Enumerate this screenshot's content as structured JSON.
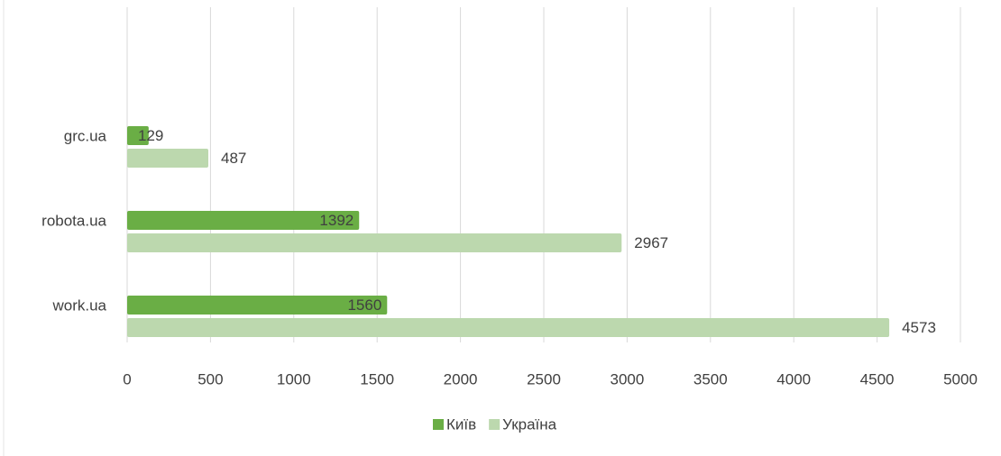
{
  "chart_data": {
    "type": "bar",
    "orientation": "horizontal",
    "categories": [
      "grc.ua",
      "robota.ua",
      "work.ua"
    ],
    "series": [
      {
        "name": "Київ",
        "color": "#6aae45",
        "values": [
          129,
          1392,
          1560
        ]
      },
      {
        "name": "Україна",
        "color": "#bcd8ae",
        "values": [
          487,
          2967,
          4573
        ]
      }
    ],
    "xlim": [
      0,
      5000
    ],
    "xticks": [
      0,
      500,
      1000,
      1500,
      2000,
      2500,
      3000,
      3500,
      4000,
      4500,
      5000
    ],
    "grid": true,
    "legend": "bottom"
  }
}
